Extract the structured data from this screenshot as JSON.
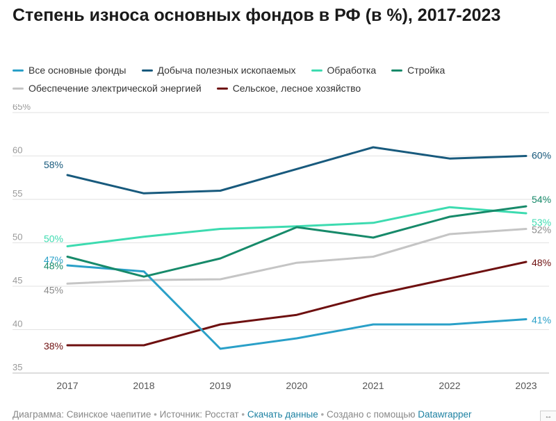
{
  "chart_data": {
    "type": "line",
    "title": "Степень износа основных фондов в РФ (в %), 2017-2023",
    "x": [
      "2017",
      "2018",
      "2019",
      "2020",
      "2021",
      "2022",
      "2023"
    ],
    "ylim": [
      35,
      65
    ],
    "y_ticks": [
      "65%",
      "60",
      "55",
      "50",
      "45",
      "40",
      "35"
    ],
    "grid": true,
    "series": [
      {
        "name": "Все основные фонды",
        "color": "#2aa0c8",
        "values": [
          47.4,
          46.7,
          37.8,
          39.0,
          40.6,
          40.6,
          41.2
        ],
        "start_label": "47%",
        "end_label": "41%"
      },
      {
        "name": "Добыча полезных ископаемых",
        "color": "#185a7d",
        "values": [
          57.8,
          55.7,
          56.0,
          58.5,
          61.0,
          59.7,
          60.0
        ],
        "start_label": "58%",
        "end_label": "60%"
      },
      {
        "name": "Обработка",
        "color": "#3ddbb0",
        "values": [
          49.6,
          50.7,
          51.6,
          51.9,
          52.3,
          54.1,
          53.4
        ],
        "start_label": "50%",
        "end_label": "53%"
      },
      {
        "name": "Стройка",
        "color": "#178a6a",
        "values": [
          48.4,
          46.1,
          48.2,
          51.8,
          50.6,
          53.0,
          54.2
        ],
        "start_label": "48%",
        "end_label": "54%"
      },
      {
        "name": "Обеспечение электрической энергией",
        "color": "#c5c5c5",
        "values": [
          45.3,
          45.7,
          45.8,
          47.7,
          48.4,
          51.0,
          51.6
        ],
        "start_label": "45%",
        "end_label": "52%"
      },
      {
        "name": "Сельское, лесное хозяйство",
        "color": "#6e1010",
        "values": [
          38.2,
          38.2,
          40.6,
          41.7,
          44.0,
          45.9,
          47.8
        ],
        "start_label": "38%",
        "end_label": "48%"
      }
    ]
  },
  "footer": {
    "diagram": "Диаграмма: Свинское чаепитие",
    "sep": "•",
    "source": "Источник: Росстат",
    "download": "Скачать данные",
    "created_prefix": "Создано с помощью",
    "created_link": "Datawrapper"
  },
  "corner_icon": "expand-icon",
  "corner_glyph": "↔"
}
